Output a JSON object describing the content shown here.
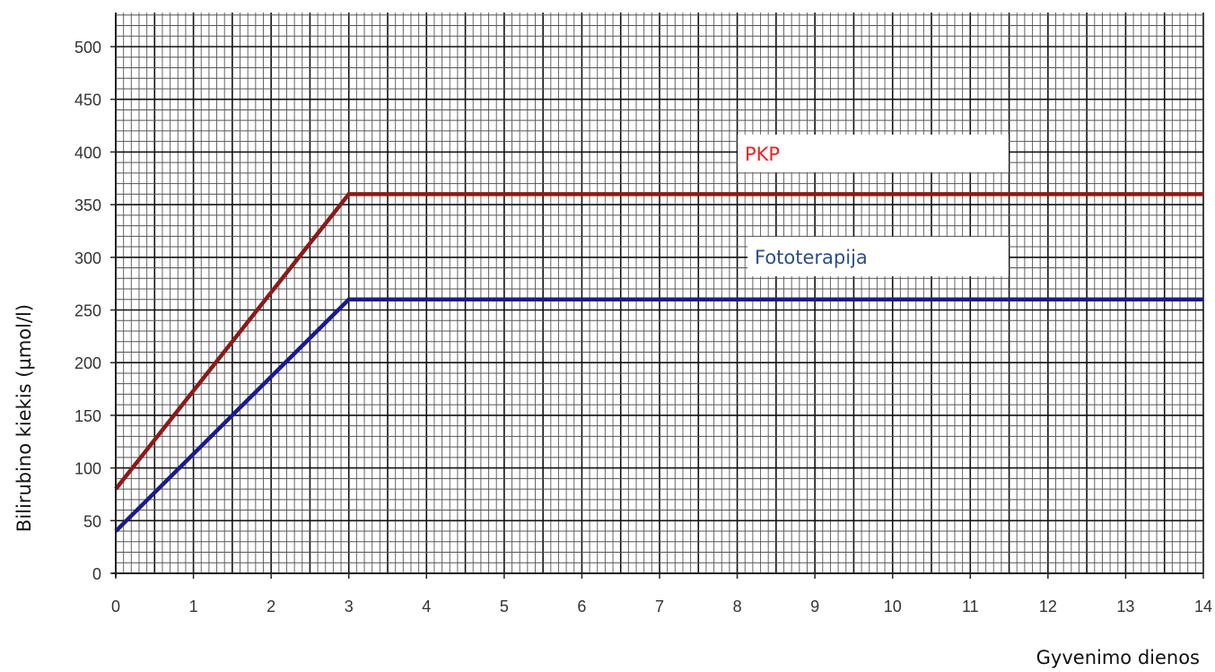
{
  "chart_data": {
    "type": "line",
    "title": "",
    "xlabel": "Gyvenimo dienos",
    "ylabel": "Bilirubino kiekis (µmol/l)",
    "xlim": [
      0,
      14
    ],
    "ylim": [
      0,
      500
    ],
    "x_ticks": [
      "0",
      "1",
      "2",
      "3",
      "4",
      "5",
      "6",
      "7",
      "8",
      "9",
      "10",
      "11",
      "12",
      "13",
      "14"
    ],
    "y_ticks": [
      "0",
      "50",
      "100",
      "150",
      "200",
      "250",
      "300",
      "350",
      "400",
      "450",
      "500"
    ],
    "grid": true,
    "series": [
      {
        "name": "PKP",
        "color": "#8b1a1a",
        "label_color": "#e8232a",
        "x": [
          0,
          3,
          14
        ],
        "y": [
          80,
          360,
          360
        ]
      },
      {
        "name": "Fototerapija",
        "color": "#1a1a8c",
        "label_color": "#2d4e86",
        "x": [
          0,
          3,
          14
        ],
        "y": [
          40,
          260,
          260
        ]
      }
    ]
  }
}
